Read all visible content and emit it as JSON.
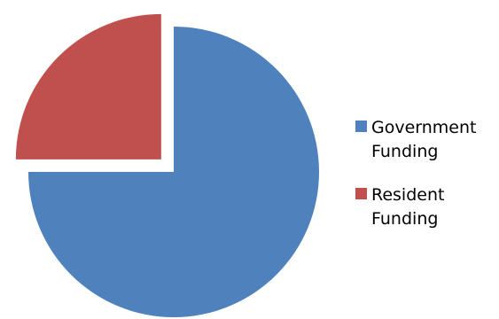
{
  "chart_data": {
    "type": "pie",
    "categories": [
      "Government Funding",
      "Resident Funding"
    ],
    "values": [
      75,
      25
    ],
    "colors": [
      "#4f81bd",
      "#c0504d"
    ],
    "exploded": [
      false,
      true
    ],
    "legend": {
      "position": "right",
      "entries": [
        {
          "lines": [
            "Government",
            "Funding"
          ],
          "color": "#4f81bd"
        },
        {
          "lines": [
            "Resident",
            "Funding"
          ],
          "color": "#c0504d"
        }
      ]
    }
  }
}
